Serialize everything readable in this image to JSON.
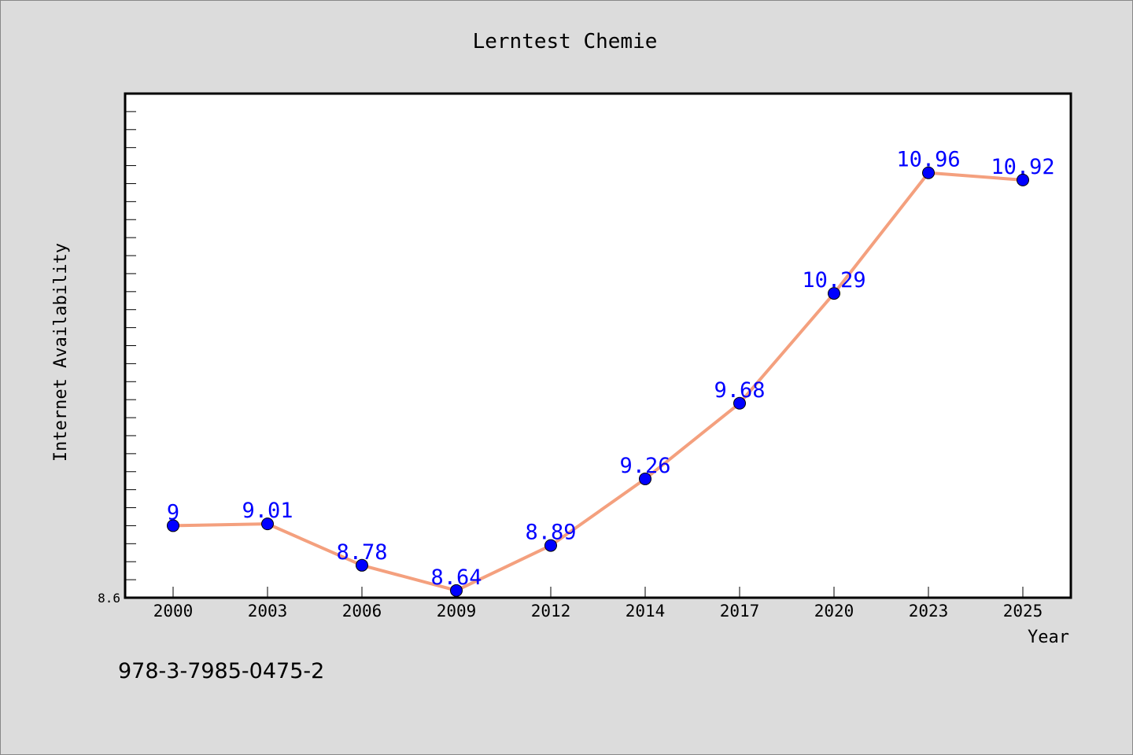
{
  "chart_data": {
    "type": "line",
    "title": "Lerntest Chemie",
    "xlabel": "Year",
    "ylabel": "Internet Availability",
    "categories": [
      "2000",
      "2003",
      "2006",
      "2009",
      "2012",
      "2014",
      "2017",
      "2020",
      "2023",
      "2025"
    ],
    "series": [
      {
        "values": [
          9,
          9.01,
          8.78,
          8.64,
          8.89,
          9.26,
          9.68,
          10.29,
          10.96,
          10.92
        ],
        "labels": [
          "9",
          "9.01",
          "8.78",
          "8.64",
          "8.89",
          "9.26",
          "9.68",
          "10.29",
          "10.96",
          "10.92"
        ]
      }
    ],
    "ylim": [
      8.6,
      11.4
    ],
    "y_tick_labels": [
      "8.6"
    ],
    "grid": false,
    "line_color": "#f4a07e",
    "marker_color": "#0000ff",
    "label_color": "#0000ff",
    "background_color": "#dcdcdc",
    "plot_background_color": "#ffffff"
  },
  "footer": {
    "isbn": "978-3-7985-0475-2"
  }
}
